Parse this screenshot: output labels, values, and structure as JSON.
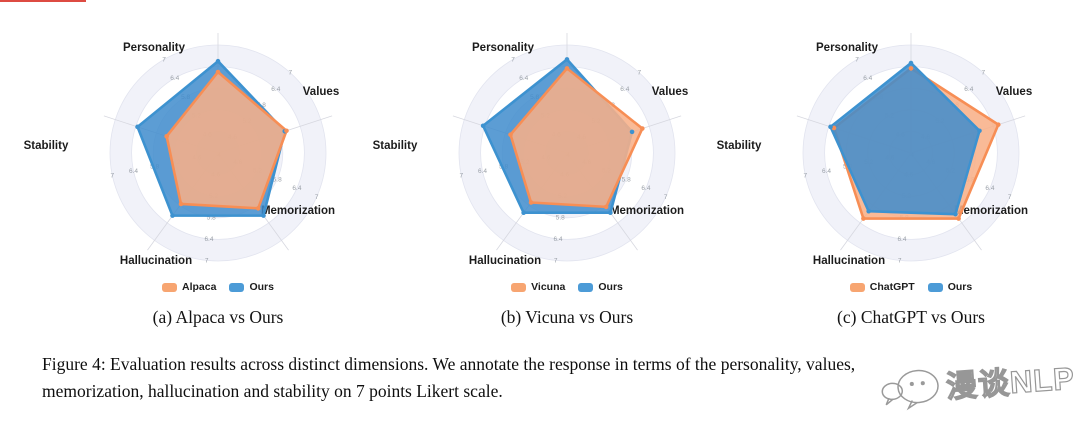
{
  "figure": {
    "caption_line1": "Figure 4: Evaluation results across distinct dimensions. We annotate the response in terms of the personality, values,",
    "caption_line2": "memorization, hallucination and stability on 7 points Likert scale."
  },
  "watermark": {
    "text": "漫谈NLP"
  },
  "decorations": {
    "top_left_line_color": "#dd4b42"
  },
  "grid_colors": {
    "ring_fill": "#f1f2f9",
    "ring_alt_fill": "#ffffff",
    "ring_line": "#e2e4ef",
    "axis_line": "#d7d8e0",
    "tick_text": "#9aa0a8",
    "axis_name_text": "#1c1c1c"
  },
  "chart_data": [
    {
      "type": "radar",
      "caption": "(a) Alpaca vs Ours",
      "axes": [
        "Personality",
        "Values",
        "Memorization",
        "Hallucination",
        "Stability"
      ],
      "scale": {
        "min": 4,
        "max": 7,
        "ring_values": [
          4.6,
          5.2,
          5.8,
          6.4,
          7
        ],
        "ring_labels": [
          "4.6",
          "5.2",
          "5.8",
          "6.4",
          "7"
        ],
        "center_label": "4"
      },
      "series": [
        {
          "name": "Alpaca",
          "swatch": "#F7A571",
          "stroke": "#F78E55",
          "fill": "rgba(248,176,135,0.87)",
          "on_top": true,
          "values": [
            6.25,
            6.0,
            5.9,
            5.75,
            5.5
          ]
        },
        {
          "name": "Ours",
          "swatch": "#4C9BD7",
          "stroke": "#3D92D0",
          "fill": "rgba(64,140,205,0.85)",
          "on_top": false,
          "values": [
            6.55,
            5.95,
            6.15,
            6.15,
            6.35
          ]
        }
      ]
    },
    {
      "type": "radar",
      "caption": "(b) Vicuna vs Ours",
      "axes": [
        "Personality",
        "Values",
        "Memorization",
        "Hallucination",
        "Stability"
      ],
      "scale": {
        "min": 4,
        "max": 7,
        "ring_values": [
          4.6,
          5.2,
          5.8,
          6.4,
          7
        ],
        "ring_labels": [
          "4.6",
          "5.2",
          "5.8",
          "6.4",
          "7"
        ],
        "center_label": "4"
      },
      "series": [
        {
          "name": "Vicuna",
          "swatch": "#F7A571",
          "stroke": "#F78E55",
          "fill": "rgba(248,176,135,0.87)",
          "on_top": true,
          "values": [
            6.35,
            6.2,
            5.85,
            5.7,
            5.65
          ]
        },
        {
          "name": "Ours",
          "swatch": "#4C9BD7",
          "stroke": "#3D92D0",
          "fill": "rgba(64,140,205,0.85)",
          "on_top": false,
          "values": [
            6.6,
            5.9,
            6.05,
            6.05,
            6.45
          ]
        }
      ]
    },
    {
      "type": "radar",
      "caption": "(c) ChatGPT vs Ours",
      "axes": [
        "Personality",
        "Values",
        "Memorization",
        "Hallucination",
        "Stability"
      ],
      "scale": {
        "min": 4,
        "max": 7,
        "ring_values": [
          4.6,
          5.2,
          5.8,
          6.4,
          7
        ],
        "ring_labels": [
          "4.6",
          "5.2",
          "5.8",
          "6.4",
          "7"
        ],
        "center_label": "4"
      },
      "series": [
        {
          "name": "ChatGPT",
          "swatch": "#F7A571",
          "stroke": "#F78E55",
          "fill": "rgba(248,176,135,0.87)",
          "on_top": false,
          "values": [
            6.35,
            6.55,
            6.25,
            6.25,
            6.25
          ]
        },
        {
          "name": "Ours",
          "swatch": "#4C9BD7",
          "stroke": "#3D92D0",
          "fill": "rgba(64,140,205,0.85)",
          "on_top": true,
          "values": [
            6.5,
            6.0,
            6.1,
            6.0,
            6.35
          ]
        }
      ]
    }
  ]
}
